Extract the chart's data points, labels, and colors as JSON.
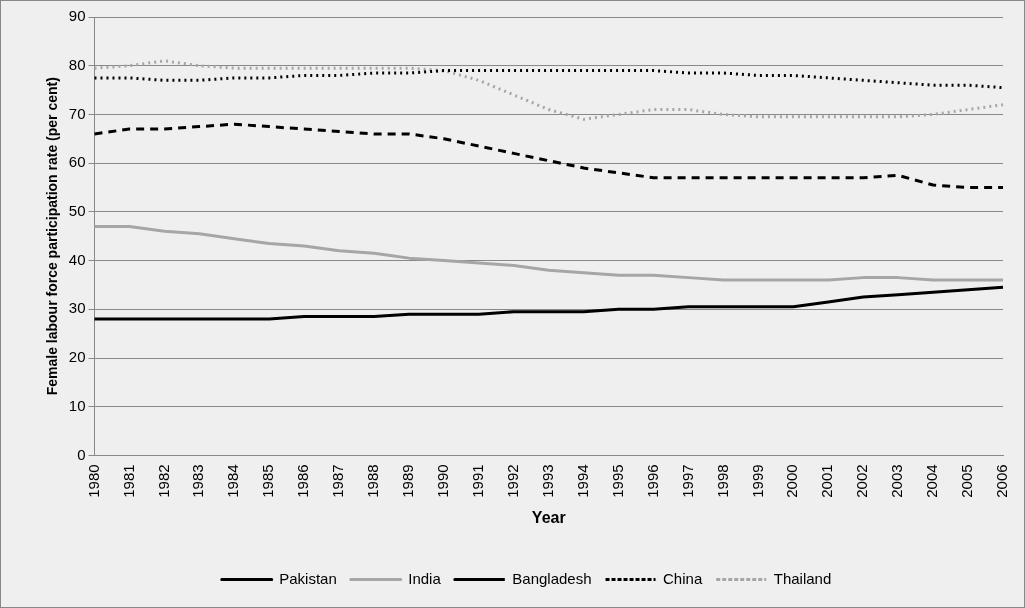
{
  "chart_data": {
    "type": "line",
    "xlabel": "Year",
    "ylabel": "Female labour force participation rate (per cent)",
    "categories": [
      "1980",
      "1981",
      "1982",
      "1983",
      "1984",
      "1985",
      "1986",
      "1987",
      "1988",
      "1989",
      "1990",
      "1991",
      "1992",
      "1993",
      "1994",
      "1995",
      "1996",
      "1997",
      "1998",
      "1999",
      "2000",
      "2001",
      "2002",
      "2003",
      "2004",
      "2005",
      "2006"
    ],
    "series": [
      {
        "name": "Pakistan",
        "color": "#000000",
        "line_style": "solid",
        "values": [
          28,
          28,
          28,
          28,
          28,
          28,
          28.5,
          28.5,
          28.5,
          29,
          29,
          29,
          29.5,
          29.5,
          29.5,
          30,
          30,
          30.5,
          30.5,
          30.5,
          30.5,
          31.5,
          32.5,
          33,
          33.5,
          34,
          34.5
        ]
      },
      {
        "name": "India",
        "color": "#a6a6a6",
        "line_style": "solid",
        "values": [
          47,
          47,
          46,
          45.5,
          44.5,
          43.5,
          43,
          42,
          41.5,
          40.5,
          40,
          39.5,
          39,
          38,
          37.5,
          37,
          37,
          36.5,
          36,
          36,
          36,
          36,
          36.5,
          36.5,
          36,
          36,
          36
        ]
      },
      {
        "name": "Bangladesh",
        "color": "#000000",
        "line_style": "dashed",
        "values": [
          66,
          67,
          67,
          67.5,
          68,
          67.5,
          67,
          66.5,
          66,
          66,
          65,
          63.5,
          62,
          60.5,
          59,
          58,
          57,
          57,
          57,
          57,
          57,
          57,
          57,
          57.5,
          55.5,
          55,
          55
        ]
      },
      {
        "name": "China",
        "color": "#000000",
        "line_style": "dotted",
        "values": [
          77.5,
          77.5,
          77,
          77,
          77.5,
          77.5,
          78,
          78,
          78.5,
          78.5,
          79,
          79,
          79,
          79,
          79,
          79,
          79,
          78.5,
          78.5,
          78,
          78,
          77.5,
          77,
          76.5,
          76,
          76,
          75.5
        ]
      },
      {
        "name": "Thailand",
        "color": "#a6a6a6",
        "line_style": "dotted",
        "values": [
          79.5,
          80,
          81,
          80,
          79.5,
          79.5,
          79.5,
          79.5,
          79.5,
          79.5,
          79,
          77,
          74,
          71,
          69,
          70,
          71,
          71,
          70,
          69.5,
          69.5,
          69.5,
          69.5,
          69.5,
          70,
          71,
          72
        ]
      }
    ],
    "ylim": [
      0,
      90
    ],
    "yticks": [
      0,
      10,
      20,
      30,
      40,
      50,
      60,
      70,
      80,
      90
    ],
    "grid": "y",
    "legend": "bottom",
    "marker": "none"
  }
}
